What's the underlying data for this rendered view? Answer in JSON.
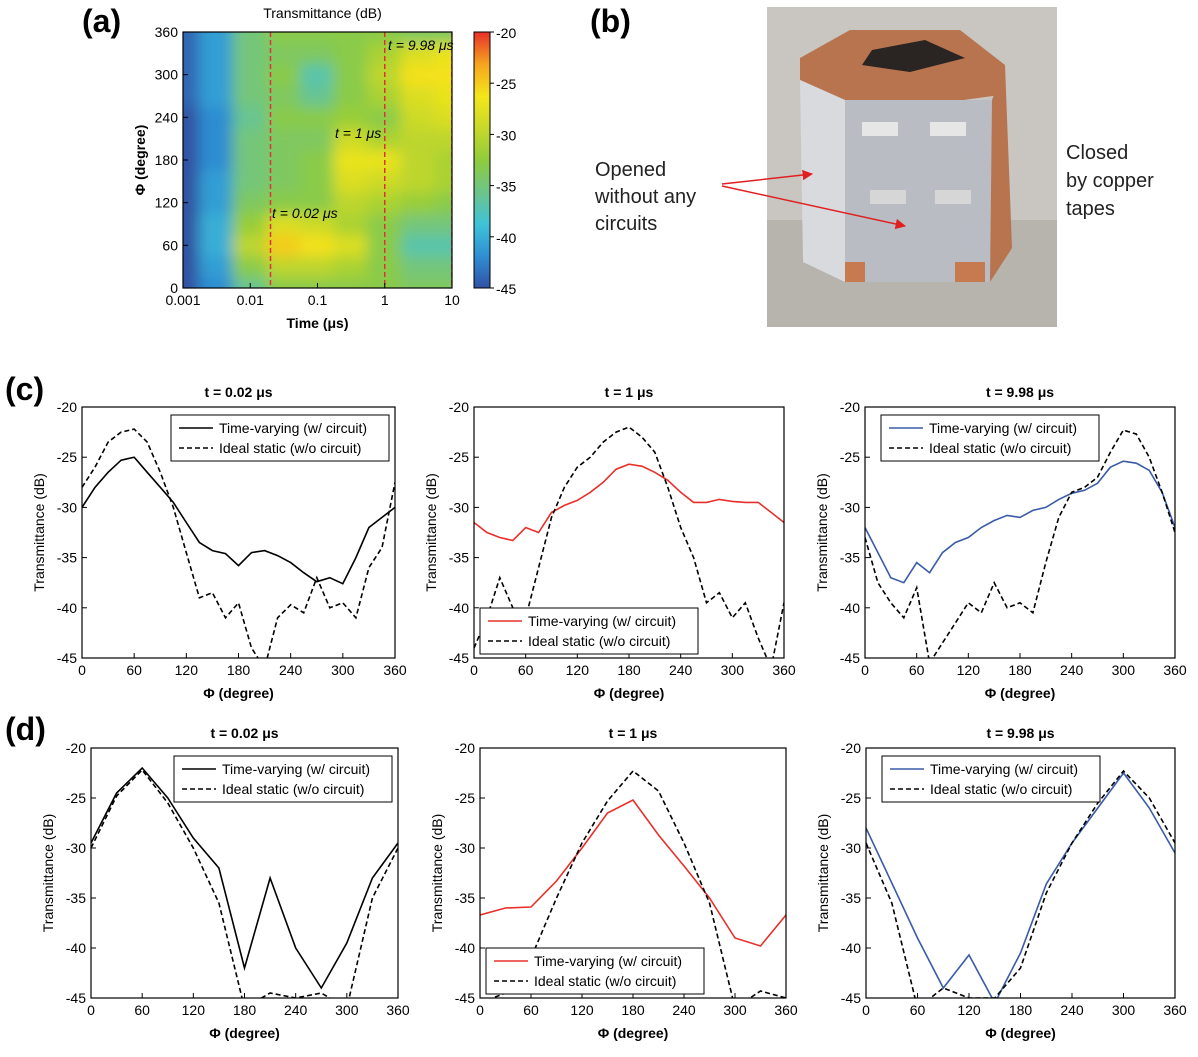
{
  "chart_data": [
    {
      "type": "heatmap",
      "panel_label": "(a)",
      "title": "Transmittance (dB)",
      "x_label": "Time (μs)",
      "y_label": "Φ (degree)",
      "xscale": "log",
      "xlim": [
        0.001,
        10
      ],
      "xticks": [
        0.001,
        0.01,
        0.1,
        1,
        10
      ],
      "ylim": [
        0,
        360
      ],
      "yticks": [
        0,
        60,
        120,
        180,
        240,
        300,
        360
      ],
      "clim": [
        -45,
        -20
      ],
      "cticks": [
        -20,
        -25,
        -30,
        -35,
        -40,
        -45
      ],
      "colormap": [
        "#3152a3",
        "#2f8fd3",
        "#3fc3d8",
        "#6dc48a",
        "#8fcc3c",
        "#c8d82a",
        "#f4e61a",
        "#f6a420",
        "#e8302a"
      ],
      "x": [
        0.001,
        0.003,
        0.01,
        0.03,
        0.1,
        0.3,
        1,
        3,
        10
      ],
      "y": [
        0,
        30,
        60,
        90,
        120,
        150,
        180,
        210,
        240,
        270,
        300,
        330,
        360
      ],
      "z": [
        [
          -45,
          -42,
          -36,
          -33,
          -33,
          -33,
          -33,
          -34,
          -34
        ],
        [
          -45,
          -41,
          -33,
          -30,
          -30,
          -31,
          -33,
          -35,
          -35
        ],
        [
          -45,
          -40,
          -30,
          -25,
          -26,
          -28,
          -33,
          -37,
          -37
        ],
        [
          -45,
          -40,
          -32,
          -28,
          -29,
          -31,
          -33,
          -35,
          -35
        ],
        [
          -45,
          -41,
          -34,
          -33,
          -33,
          -30,
          -31,
          -32,
          -33
        ],
        [
          -45,
          -41,
          -35,
          -34,
          -33,
          -28,
          -29,
          -30,
          -31
        ],
        [
          -45,
          -42,
          -35,
          -34,
          -33,
          -27,
          -27,
          -30,
          -31
        ],
        [
          -45,
          -42,
          -35,
          -34,
          -34,
          -29,
          -31,
          -30,
          -30
        ],
        [
          -45,
          -42,
          -36,
          -33,
          -33,
          -32,
          -33,
          -29,
          -28
        ],
        [
          -44,
          -41,
          -35,
          -34,
          -36,
          -33,
          -31,
          -28,
          -27
        ],
        [
          -44,
          -41,
          -35,
          -33,
          -37,
          -33,
          -30,
          -26,
          -26
        ],
        [
          -44,
          -41,
          -35,
          -34,
          -34,
          -33,
          -31,
          -28,
          -27
        ],
        [
          -44,
          -41,
          -35,
          -33,
          -33,
          -33,
          -33,
          -34,
          -34
        ]
      ],
      "markers": [
        0.02,
        1,
        9.98
      ],
      "markers_color": "#e0303a",
      "annotations": [
        "t = 0.02 μs",
        "t = 1 μs",
        "t = 9.98 μs"
      ]
    },
    {
      "type": "line",
      "panel_label": "(c)",
      "title": "t = 0.02 μs",
      "x_label": "Φ (degree)",
      "y_label": "Transmittance (dB)",
      "xlim": [
        0,
        360
      ],
      "xticks": [
        0,
        60,
        120,
        180,
        240,
        300,
        360
      ],
      "ylim": [
        -45,
        -20
      ],
      "yticks": [
        -20,
        -25,
        -30,
        -35,
        -40,
        -45
      ],
      "legend": "upper right",
      "x": [
        0,
        15,
        30,
        45,
        60,
        75,
        90,
        105,
        120,
        135,
        150,
        165,
        180,
        195,
        210,
        225,
        240,
        255,
        270,
        285,
        300,
        315,
        330,
        345,
        360
      ],
      "series": [
        {
          "name": "Time-varying (w/ circuit)",
          "color": "#000000",
          "dash": false,
          "values": [
            -30,
            -28,
            -26.5,
            -25.3,
            -25,
            -26.5,
            -28,
            -29.5,
            -31.5,
            -33.5,
            -34.3,
            -34.6,
            -35.8,
            -34.5,
            -34.3,
            -34.8,
            -35.5,
            -36.5,
            -37.4,
            -37,
            -37.6,
            -35,
            -32,
            -31,
            -30
          ]
        },
        {
          "name": "Ideal static (w/o circuit)",
          "color": "#000000",
          "dash": true,
          "values": [
            -28,
            -26,
            -23.5,
            -22.5,
            -22.2,
            -23.5,
            -26.5,
            -30,
            -34.5,
            -39,
            -38.5,
            -41,
            -39.5,
            -44,
            -46,
            -41,
            -39.7,
            -40.5,
            -37,
            -40,
            -39.5,
            -41,
            -36,
            -34,
            -27.5
          ]
        }
      ]
    },
    {
      "type": "line",
      "title": "t = 1 μs",
      "x_label": "Φ (degree)",
      "y_label": "Transmittance (dB)",
      "xlim": [
        0,
        360
      ],
      "xticks": [
        0,
        60,
        120,
        180,
        240,
        300,
        360
      ],
      "ylim": [
        -45,
        -20
      ],
      "yticks": [
        -20,
        -25,
        -30,
        -35,
        -40,
        -45
      ],
      "legend": "lower left",
      "x": [
        0,
        15,
        30,
        45,
        60,
        75,
        90,
        105,
        120,
        135,
        150,
        165,
        180,
        195,
        210,
        225,
        240,
        255,
        270,
        285,
        300,
        315,
        330,
        345,
        360
      ],
      "series": [
        {
          "name": "Time-varying (w/ circuit)",
          "color": "#e8302a",
          "dash": false,
          "values": [
            -31.5,
            -32.5,
            -33,
            -33.3,
            -32,
            -32.5,
            -30.5,
            -29.8,
            -29.3,
            -28.5,
            -27.5,
            -26.2,
            -25.7,
            -25.9,
            -26.5,
            -27.3,
            -28.5,
            -29.5,
            -29.5,
            -29.2,
            -29.4,
            -29.5,
            -29.5,
            -30.5,
            -31.5
          ]
        },
        {
          "name": "Ideal static (w/o circuit)",
          "color": "#000000",
          "dash": true,
          "values": [
            -44,
            -41,
            -37,
            -40,
            -41,
            -36,
            -31,
            -28,
            -26,
            -25,
            -23.5,
            -22.5,
            -22,
            -23,
            -24.5,
            -28,
            -32,
            -35,
            -39.5,
            -38.5,
            -41,
            -39.5,
            -43,
            -46,
            -39.5
          ]
        }
      ]
    },
    {
      "type": "line",
      "title": "t = 9.98 μs",
      "x_label": "Φ (degree)",
      "y_label": "Transmittance (dB)",
      "xlim": [
        0,
        360
      ],
      "xticks": [
        0,
        60,
        120,
        180,
        240,
        300,
        360
      ],
      "ylim": [
        -45,
        -20
      ],
      "yticks": [
        -20,
        -25,
        -30,
        -35,
        -40,
        -45
      ],
      "legend": "upper left",
      "x": [
        0,
        15,
        30,
        45,
        60,
        75,
        90,
        105,
        120,
        135,
        150,
        165,
        180,
        195,
        210,
        225,
        240,
        255,
        270,
        285,
        300,
        315,
        330,
        345,
        360
      ],
      "series": [
        {
          "name": "Time-varying (w/ circuit)",
          "color": "#3a5ba8",
          "dash": false,
          "values": [
            -32,
            -34.5,
            -37,
            -37.5,
            -35.5,
            -36.5,
            -34.5,
            -33.5,
            -33,
            -32,
            -31.3,
            -30.8,
            -31,
            -30.3,
            -30,
            -29.2,
            -28.6,
            -28.3,
            -27.6,
            -26,
            -25.4,
            -25.6,
            -26.3,
            -28.5,
            -32
          ]
        },
        {
          "name": "Ideal static (w/o circuit)",
          "color": "#000000",
          "dash": true,
          "values": [
            -33,
            -37.5,
            -39.5,
            -41,
            -38,
            -45.5,
            -43.5,
            -41.5,
            -39.5,
            -40.5,
            -37.5,
            -40,
            -39.5,
            -40.5,
            -35.5,
            -31,
            -28.5,
            -28,
            -27,
            -24.5,
            -22.3,
            -22.7,
            -25,
            -28.5,
            -32.5
          ]
        }
      ]
    },
    {
      "type": "line",
      "panel_label": "(d)",
      "title": "t = 0.02 μs",
      "x_label": "Φ (degree)",
      "y_label": "Transmittance (dB)",
      "xlim": [
        0,
        360
      ],
      "xticks": [
        0,
        60,
        120,
        180,
        240,
        300,
        360
      ],
      "ylim": [
        -45,
        -20
      ],
      "yticks": [
        -20,
        -25,
        -30,
        -35,
        -40,
        -45
      ],
      "legend": "upper right",
      "x": [
        0,
        30,
        60,
        90,
        120,
        150,
        180,
        210,
        240,
        270,
        300,
        330,
        360
      ],
      "series": [
        {
          "name": "Time-varying (w/ circuit)",
          "color": "#000000",
          "dash": false,
          "values": [
            -29.5,
            -24.5,
            -22,
            -25,
            -29,
            -32,
            -42,
            -33,
            -40,
            -44,
            -39.5,
            -33,
            -29.5
          ]
        },
        {
          "name": "Ideal static (w/o circuit)",
          "color": "#000000",
          "dash": true,
          "values": [
            -30,
            -24.8,
            -22.2,
            -25.5,
            -30,
            -35.5,
            -46,
            -44.5,
            -45,
            -44.5,
            -46,
            -35,
            -30
          ]
        }
      ]
    },
    {
      "type": "line",
      "title": "t = 1 μs",
      "x_label": "Φ (degree)",
      "y_label": "Transmittance (dB)",
      "xlim": [
        0,
        360
      ],
      "xticks": [
        0,
        60,
        120,
        180,
        240,
        300,
        360
      ],
      "ylim": [
        -45,
        -20
      ],
      "yticks": [
        -20,
        -25,
        -30,
        -35,
        -40,
        -45
      ],
      "legend": "lower left",
      "x": [
        0,
        30,
        60,
        90,
        120,
        150,
        180,
        210,
        240,
        270,
        300,
        330,
        360
      ],
      "series": [
        {
          "name": "Time-varying (w/ circuit)",
          "color": "#e8302a",
          "dash": false,
          "values": [
            -36.7,
            -36,
            -35.9,
            -33.3,
            -30,
            -26.5,
            -25.2,
            -28.7,
            -31.8,
            -35,
            -39,
            -39.8,
            -36.7
          ]
        },
        {
          "name": "Ideal static (w/o circuit)",
          "color": "#000000",
          "dash": true,
          "values": [
            -45.5,
            -44.5,
            -41,
            -35,
            -29.5,
            -25.3,
            -22.3,
            -24.3,
            -29.5,
            -35.5,
            -46,
            -44.3,
            -45
          ]
        }
      ]
    },
    {
      "type": "line",
      "title": "t = 9.98 μs",
      "x_label": "Φ (degree)",
      "y_label": "Transmittance (dB)",
      "xlim": [
        0,
        360
      ],
      "xticks": [
        0,
        60,
        120,
        180,
        240,
        300,
        360
      ],
      "ylim": [
        -45,
        -20
      ],
      "yticks": [
        -20,
        -25,
        -30,
        -35,
        -40,
        -45
      ],
      "legend": "upper left",
      "x": [
        0,
        30,
        60,
        90,
        120,
        150,
        180,
        210,
        240,
        270,
        300,
        330,
        360
      ],
      "series": [
        {
          "name": "Time-varying (w/ circuit)",
          "color": "#3a5ba8",
          "dash": false,
          "values": [
            -28,
            -33.5,
            -39,
            -44,
            -40.7,
            -45.5,
            -40.5,
            -33.6,
            -29.5,
            -26,
            -22.5,
            -26,
            -30.5
          ]
        },
        {
          "name": "Ideal static (w/o circuit)",
          "color": "#000000",
          "dash": true,
          "values": [
            -29.5,
            -35.5,
            -46,
            -44,
            -45,
            -45,
            -42,
            -34.5,
            -29.5,
            -25.5,
            -22.3,
            -25,
            -29.5
          ]
        }
      ]
    }
  ],
  "photo": {
    "panel_label": "(b)",
    "left_note": [
      "Opened",
      "without any",
      "circuits"
    ],
    "right_note": [
      "Closed",
      "by copper",
      "tapes"
    ]
  }
}
